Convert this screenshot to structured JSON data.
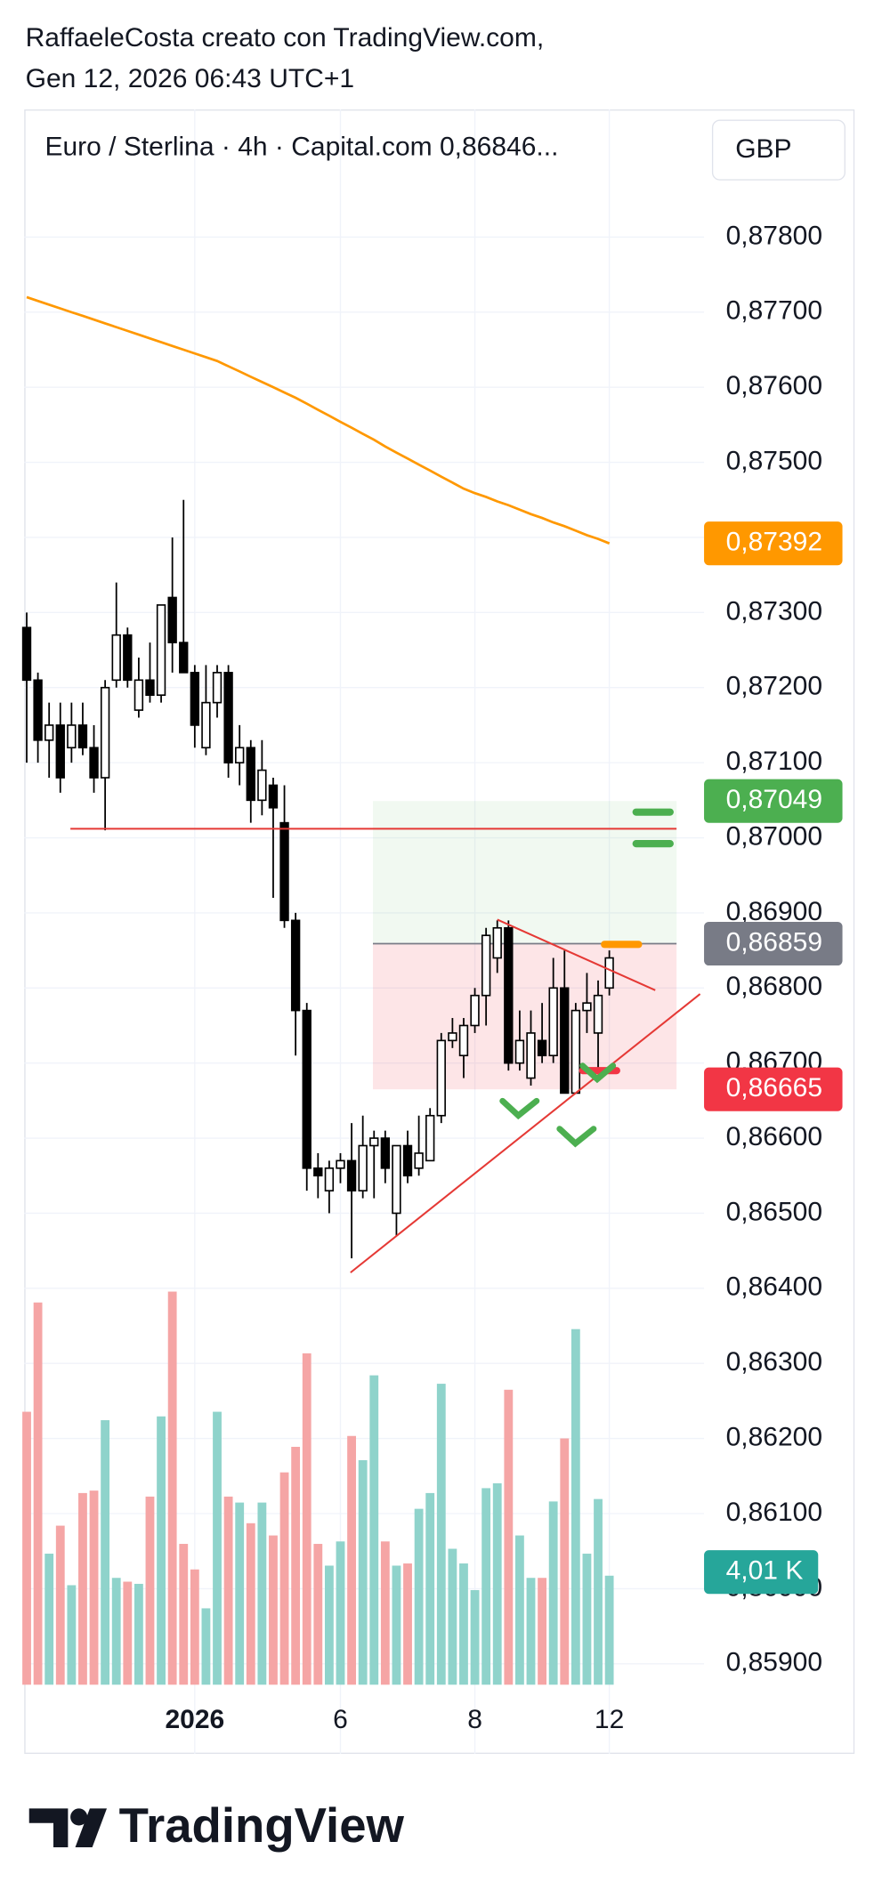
{
  "chart_data": {
    "type": "candlestick",
    "attribution": "RaffaeleCosta creato con TradingView.com,",
    "timestamp": "Gen 12, 2026 06:43 UTC+1",
    "legend": "Euro / Sterlina · 4h · Capital.com  0,86846...",
    "currency": "GBP",
    "brand": "TradingView",
    "categories": [
      null,
      null,
      null,
      null,
      null,
      null,
      null,
      null,
      null,
      null,
      null,
      null,
      null,
      null,
      null,
      "2026",
      null,
      null,
      null,
      null,
      null,
      null,
      null,
      null,
      null,
      null,
      null,
      null,
      "6",
      null,
      null,
      null,
      null,
      null,
      null,
      null,
      null,
      null,
      null,
      null,
      "8",
      null,
      null,
      null,
      null,
      null,
      null,
      null,
      null,
      null,
      null,
      null,
      "12"
    ],
    "open": [
      0.8728,
      0.8721,
      0.8713,
      0.8715,
      0.8712,
      0.8715,
      0.8712,
      0.8708,
      0.8721,
      0.8727,
      0.8717,
      0.8721,
      0.8719,
      0.8732,
      0.8726,
      0.8722,
      0.8712,
      0.8718,
      0.8722,
      0.871,
      0.8712,
      0.8705,
      0.8707,
      0.8702,
      0.8689,
      0.8677,
      0.8656,
      0.8653,
      0.8656,
      0.8657,
      0.8653,
      0.8659,
      0.866,
      0.865,
      0.8659,
      0.8656,
      0.8657,
      0.8663,
      0.8673,
      0.8671,
      0.8675,
      0.8679,
      0.8684,
      0.8688,
      0.867,
      0.8668,
      0.8673,
      0.8671,
      0.868,
      0.8666,
      0.8677,
      0.8674,
      0.868
    ],
    "high": [
      0.873,
      0.8722,
      0.8718,
      0.8718,
      0.8718,
      0.8718,
      0.8715,
      0.8721,
      0.8734,
      0.8728,
      0.8724,
      0.8726,
      0.8731,
      0.874,
      0.8745,
      0.8723,
      0.8723,
      0.8723,
      0.8723,
      0.8715,
      0.8713,
      0.8713,
      0.8708,
      0.8707,
      0.869,
      0.8678,
      0.8658,
      0.8657,
      0.8658,
      0.8662,
      0.8663,
      0.8661,
      0.8661,
      0.8659,
      0.8661,
      0.8663,
      0.8664,
      0.8674,
      0.8676,
      0.8676,
      0.868,
      0.8688,
      0.8689,
      0.8689,
      0.8677,
      0.8677,
      0.8678,
      0.8684,
      0.8685,
      0.8678,
      0.8682,
      0.8681,
      0.8685
    ],
    "low": [
      0.871,
      0.871,
      0.8708,
      0.8706,
      0.871,
      0.8711,
      0.8706,
      0.8701,
      0.872,
      0.872,
      0.8716,
      0.8718,
      0.8718,
      0.8722,
      0.8722,
      0.8712,
      0.8711,
      0.8716,
      0.8708,
      0.8707,
      0.8702,
      0.8703,
      0.8692,
      0.8688,
      0.8671,
      0.8653,
      0.8652,
      0.865,
      0.8654,
      0.8644,
      0.8652,
      0.8652,
      0.8654,
      0.8647,
      0.8654,
      0.8655,
      0.8657,
      0.8662,
      0.8672,
      0.8668,
      0.8674,
      0.8675,
      0.8682,
      0.8669,
      0.8669,
      0.8667,
      0.867,
      0.867,
      0.8666,
      0.8666,
      0.8674,
      0.8669,
      0.8679
    ],
    "close": [
      0.8721,
      0.8713,
      0.8715,
      0.8708,
      0.8715,
      0.8712,
      0.8708,
      0.872,
      0.8727,
      0.8721,
      0.8721,
      0.8719,
      0.8731,
      0.8726,
      0.8722,
      0.8715,
      0.8718,
      0.8722,
      0.871,
      0.8712,
      0.8705,
      0.8709,
      0.8704,
      0.8689,
      0.8677,
      0.8656,
      0.8655,
      0.8656,
      0.8657,
      0.8653,
      0.8659,
      0.866,
      0.8656,
      0.8659,
      0.8655,
      0.8658,
      0.8663,
      0.8673,
      0.8674,
      0.8675,
      0.8679,
      0.8687,
      0.8688,
      0.867,
      0.8673,
      0.8674,
      0.8671,
      0.868,
      0.8666,
      0.8677,
      0.8678,
      0.8679,
      0.8684
    ],
    "up_color": "#ffffff",
    "down_color": "#000000",
    "volume": {
      "values": [
        10.04,
        14.06,
        4.82,
        5.85,
        3.66,
        7.05,
        7.14,
        9.73,
        3.93,
        3.79,
        3.71,
        6.92,
        9.87,
        14.46,
        5.18,
        4.24,
        2.81,
        10.04,
        6.92,
        6.7,
        5.94,
        6.7,
        5.49,
        7.81,
        8.75,
        12.19,
        5.18,
        4.38,
        5.27,
        9.15,
        8.26,
        11.38,
        5.27,
        4.38,
        4.46,
        6.47,
        7.05,
        11.07,
        5.0,
        4.46,
        3.48,
        7.23,
        7.41,
        10.85,
        5.49,
        3.93,
        3.93,
        6.74,
        9.06,
        13.08,
        4.82,
        6.83,
        4.01
      ],
      "up_color": "#8fd3cb",
      "down_color": "#f5a5a5",
      "label_color": "#26a69a",
      "ylim": [
        0,
        14.5
      ],
      "last_label": "4,01 K"
    },
    "moving_average": {
      "color": "#ff9800",
      "values": [
        0.8772,
        0.87715,
        0.8771,
        0.87705,
        0.877,
        0.87695,
        0.8769,
        0.87685,
        0.8768,
        0.87675,
        0.8767,
        0.87665,
        0.8766,
        0.87655,
        0.8765,
        0.87645,
        0.8764,
        0.87635,
        0.87628,
        0.87621,
        0.87614,
        0.87607,
        0.876,
        0.87593,
        0.87586,
        0.87578,
        0.8757,
        0.87562,
        0.87554,
        0.87546,
        0.87538,
        0.8753,
        0.87521,
        0.87513,
        0.87505,
        0.87497,
        0.87489,
        0.87481,
        0.87473,
        0.87465,
        0.87459,
        0.87454,
        0.87448,
        0.87443,
        0.87437,
        0.87431,
        0.87426,
        0.8742,
        0.87415,
        0.87409,
        0.87403,
        0.87398,
        0.87392
      ],
      "last_label": "0,87392"
    },
    "position": {
      "x": [
        30.9,
        58
      ],
      "target": {
        "value": 0.87049,
        "label": "0,87049",
        "color": "#4caf50"
      },
      "entry": {
        "value": 0.86859,
        "label": "0,86859",
        "color": "#787b86"
      },
      "stop": {
        "value": 0.86665,
        "label": "0,86665",
        "color": "#f23645"
      }
    },
    "horizontal_line": {
      "value": 0.87012,
      "x": [
        3.9,
        58
      ],
      "color": "#e53935"
    },
    "trendlines": [
      {
        "x": [
          28.9,
          60.1
        ],
        "y": [
          0.86421,
          0.86792
        ],
        "color": "#e53935"
      },
      {
        "x": [
          42.0,
          56.1
        ],
        "y": [
          0.86891,
          0.86797
        ],
        "color": "#e53935"
      }
    ],
    "ylim": [
      0.8578,
      0.8797
    ],
    "yticks": [
      {
        "value": 0.878,
        "label": "0,87800"
      },
      {
        "value": 0.877,
        "label": "0,87700"
      },
      {
        "value": 0.876,
        "label": "0,87600"
      },
      {
        "value": 0.875,
        "label": "0,87500"
      },
      {
        "value": 0.874,
        "label": "0,87400"
      },
      {
        "value": 0.873,
        "label": "0,87300"
      },
      {
        "value": 0.872,
        "label": "0,87200"
      },
      {
        "value": 0.871,
        "label": "0,87100"
      },
      {
        "value": 0.87,
        "label": "0,87000"
      },
      {
        "value": 0.869,
        "label": "0,86900"
      },
      {
        "value": 0.868,
        "label": "0,86800"
      },
      {
        "value": 0.867,
        "label": "0,86700"
      },
      {
        "value": 0.866,
        "label": "0,86600"
      },
      {
        "value": 0.865,
        "label": "0,86500"
      },
      {
        "value": 0.864,
        "label": "0,86400"
      },
      {
        "value": 0.863,
        "label": "0,86300"
      },
      {
        "value": 0.862,
        "label": "0,86200"
      },
      {
        "value": 0.861,
        "label": "0,86100"
      },
      {
        "value": 0.86,
        "label": "0,86000"
      },
      {
        "value": 0.859,
        "label": "0,85900"
      }
    ],
    "grid": true
  }
}
